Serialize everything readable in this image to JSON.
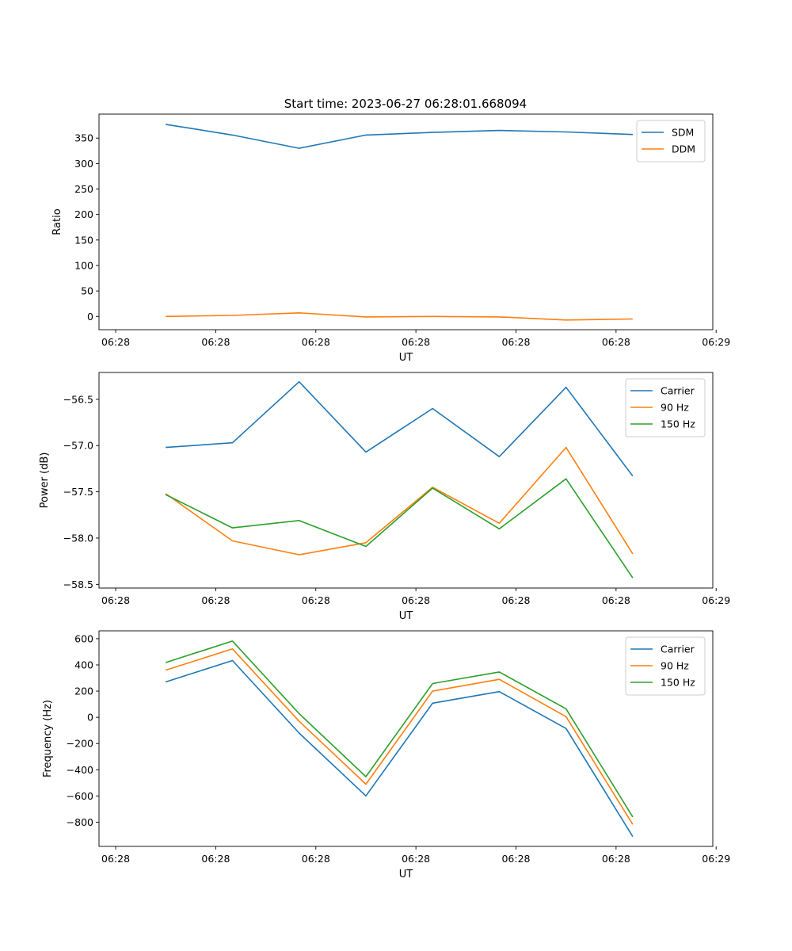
{
  "figure_title": "Start time: 2023-06-27 06:28:01.668094",
  "colors": {
    "blue": "#1f77b4",
    "orange": "#ff7f0e",
    "green": "#2ca02c"
  },
  "chart_data": [
    {
      "type": "line",
      "title": "Start time: 2023-06-27 06:28:01.668094",
      "xlabel": "UT",
      "ylabel": "Ratio",
      "x": [
        1,
        2,
        3,
        4,
        5,
        6,
        7,
        8
      ],
      "xlim": [
        0,
        9.2
      ],
      "xticks": [
        0.25,
        1.75,
        3.25,
        4.75,
        6.25,
        7.75,
        9.25
      ],
      "xtick_labels": [
        "06:28",
        "06:28",
        "06:28",
        "06:28",
        "06:28",
        "06:28",
        "06:29"
      ],
      "ylim": [
        -26,
        397
      ],
      "yticks": [
        0,
        50,
        100,
        150,
        200,
        250,
        300,
        350
      ],
      "ytick_labels": [
        "0",
        "50",
        "100",
        "150",
        "200",
        "250",
        "300",
        "350"
      ],
      "legend_position": "top-right",
      "grid": false,
      "series": [
        {
          "name": "SDM",
          "color": "#1f77b4",
          "values": [
            377,
            356,
            330,
            356,
            361,
            365,
            362,
            357
          ]
        },
        {
          "name": "DDM",
          "color": "#ff7f0e",
          "values": [
            0,
            2,
            7,
            -1,
            0,
            -1,
            -7,
            -5
          ]
        }
      ]
    },
    {
      "type": "line",
      "title": "",
      "xlabel": "UT",
      "ylabel": "Power (dB)",
      "x": [
        1,
        2,
        3,
        4,
        5,
        6,
        7,
        8
      ],
      "xlim": [
        0,
        9.2
      ],
      "xticks": [
        0.25,
        1.75,
        3.25,
        4.75,
        6.25,
        7.75,
        9.25
      ],
      "xtick_labels": [
        "06:28",
        "06:28",
        "06:28",
        "06:28",
        "06:28",
        "06:28",
        "06:29"
      ],
      "ylim": [
        -58.54,
        -56.21
      ],
      "yticks": [
        -56.5,
        -57.0,
        -57.5,
        -58.0,
        -58.5
      ],
      "ytick_labels": [
        "−56.5",
        "−57.0",
        "−57.5",
        "−58.0",
        "−58.5"
      ],
      "legend_position": "top-right",
      "grid": false,
      "series": [
        {
          "name": "Carrier",
          "color": "#1f77b4",
          "values": [
            -57.02,
            -56.97,
            -56.31,
            -57.07,
            -56.6,
            -57.12,
            -56.37,
            -57.33
          ]
        },
        {
          "name": "90 Hz",
          "color": "#ff7f0e",
          "values": [
            -57.52,
            -58.03,
            -58.18,
            -58.05,
            -57.45,
            -57.84,
            -57.02,
            -58.17
          ]
        },
        {
          "name": "150 Hz",
          "color": "#2ca02c",
          "values": [
            -57.53,
            -57.89,
            -57.81,
            -58.09,
            -57.46,
            -57.9,
            -57.36,
            -58.43
          ]
        }
      ]
    },
    {
      "type": "line",
      "title": "",
      "xlabel": "UT",
      "ylabel": "Frequency (Hz)",
      "x": [
        1,
        2,
        3,
        4,
        5,
        6,
        7,
        8
      ],
      "xlim": [
        0,
        9.2
      ],
      "xticks": [
        0.25,
        1.75,
        3.25,
        4.75,
        6.25,
        7.75,
        9.25
      ],
      "xtick_labels": [
        "06:28",
        "06:28",
        "06:28",
        "06:28",
        "06:28",
        "06:28",
        "06:29"
      ],
      "ylim": [
        -985,
        660
      ],
      "yticks": [
        600,
        400,
        200,
        0,
        -200,
        -400,
        -600,
        -800
      ],
      "ytick_labels": [
        "600",
        "400",
        "200",
        "0",
        "−200",
        "−400",
        "−600",
        "−800"
      ],
      "legend_position": "top-right",
      "grid": false,
      "series": [
        {
          "name": "Carrier",
          "color": "#1f77b4",
          "values": [
            270,
            433,
            -120,
            -600,
            108,
            196,
            -85,
            -910
          ]
        },
        {
          "name": "90 Hz",
          "color": "#ff7f0e",
          "values": [
            360,
            522,
            -30,
            -510,
            200,
            290,
            5,
            -817
          ]
        },
        {
          "name": "150 Hz",
          "color": "#2ca02c",
          "values": [
            418,
            582,
            28,
            -453,
            258,
            346,
            65,
            -760
          ]
        }
      ]
    }
  ]
}
